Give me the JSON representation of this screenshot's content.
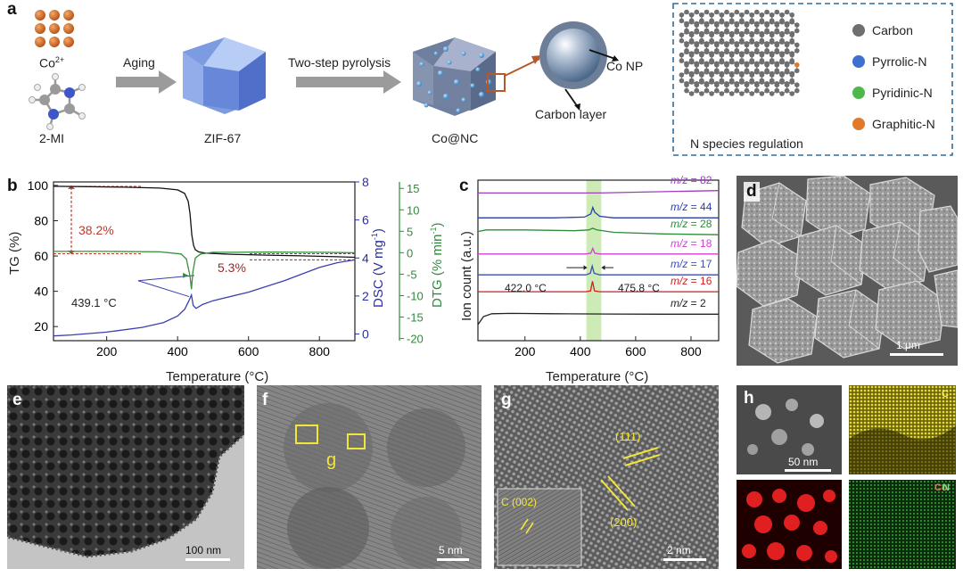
{
  "panel_a": {
    "label": "a",
    "co_ion": "Co",
    "co_ion_sup": "2+",
    "ligand": "2-MI",
    "step1": "Aging",
    "step2": "Two-step pyrolysis",
    "zif": "ZIF-67",
    "product": "Co@NC",
    "co_np": "Co NP",
    "carbon_layer": "Carbon layer",
    "regulation_caption": "N species regulation",
    "legend": [
      {
        "name": "Carbon",
        "color": "#6f6f6f"
      },
      {
        "name": "Pyrrolic-N",
        "color": "#3f6fd0"
      },
      {
        "name": "Pyridinic-N",
        "color": "#4fb84a"
      },
      {
        "name": "Graphitic-N",
        "color": "#e07a2a"
      }
    ]
  },
  "panel_b": {
    "label": "b",
    "left_axis_label": "TG (%)",
    "mid_axis_label": "DSC (V mg",
    "mid_axis_sup": "-1",
    "right_axis_label": "DTG (% min",
    "right_axis_sup": "-1",
    "x_axis_label": "Temperature (°C)",
    "ann_loss1": "38.2%",
    "ann_loss2": "5.3%",
    "ann_peak": "439.1 °C"
  },
  "panel_c": {
    "label": "c",
    "y_axis_label": "Ion count (a.u.)",
    "x_axis_label": "Temperature (°C)",
    "ann_left": "422.0 °C",
    "ann_right": "475.8 °C",
    "mz_prefix": "m/z",
    "traces": [
      {
        "mz": "82",
        "color": "#9b3fbf"
      },
      {
        "mz": "44",
        "color": "#2a3fa8"
      },
      {
        "mz": "28",
        "color": "#2e8b3a"
      },
      {
        "mz": "18",
        "color": "#d23fd2"
      },
      {
        "mz": "17",
        "color": "#3a4fb0"
      },
      {
        "mz": "16",
        "color": "#d21f1f"
      },
      {
        "mz": "2",
        "color": "#222222"
      }
    ]
  },
  "panel_d": {
    "label": "d",
    "scale": "1 μm"
  },
  "panel_e": {
    "label": "e",
    "scale": "100 nm"
  },
  "panel_f": {
    "label": "f",
    "scale": "5 nm",
    "region": "g"
  },
  "panel_g": {
    "label": "g",
    "scale": "2 nm",
    "plane1": "(111)",
    "plane2": "(200)",
    "plane3": "C (002)"
  },
  "panel_h": {
    "label": "h",
    "scale": "50 nm",
    "map_c": "C",
    "map_co": "Co",
    "map_n": "N"
  },
  "chart_data": [
    {
      "type": "line",
      "panel": "b",
      "xlabel": "Temperature (°C)",
      "xlim": [
        50,
        900
      ],
      "x_ticks": [
        200,
        400,
        600,
        800
      ],
      "y_axes": [
        {
          "name": "TG (%)",
          "range": [
            12,
            102
          ],
          "ticks": [
            20,
            40,
            60,
            80,
            100
          ]
        },
        {
          "name": "DSC (V mg-1)",
          "range": [
            -0.35,
            8
          ],
          "ticks": [
            0,
            2,
            4,
            6,
            8
          ]
        },
        {
          "name": "DTG (% min-1)",
          "range": [
            -20.5,
            16.5
          ],
          "ticks": [
            -20,
            -15,
            -10,
            -5,
            0,
            5,
            10,
            15
          ]
        }
      ],
      "series": [
        {
          "name": "TG",
          "color": "#111111",
          "axis": 0,
          "x": [
            50,
            150,
            250,
            350,
            400,
            420,
            430,
            435,
            440,
            445,
            450,
            460,
            480,
            550,
            650,
            750,
            850,
            900
          ],
          "y": [
            99.5,
            99.3,
            99,
            98.5,
            97.5,
            95.5,
            91,
            84,
            72,
            66,
            63.5,
            62.3,
            61.6,
            61,
            60.5,
            60.1,
            59.6,
            59.3
          ]
        },
        {
          "name": "DSC",
          "color": "#3a3fb0",
          "axis": 1,
          "x": [
            50,
            100,
            200,
            300,
            360,
            400,
            420,
            432,
            439,
            444,
            452,
            470,
            500,
            600,
            700,
            800,
            850,
            900
          ],
          "y": [
            -0.1,
            -0.05,
            0.1,
            0.35,
            0.6,
            0.95,
            1.3,
            1.75,
            2.05,
            1.5,
            1.35,
            1.55,
            1.75,
            2.2,
            2.8,
            3.5,
            3.75,
            3.9
          ]
        },
        {
          "name": "DTG",
          "color": "#3a8f3a",
          "axis": 2,
          "x": [
            50,
            200,
            350,
            410,
            425,
            435,
            439,
            443,
            450,
            465,
            500,
            650,
            800,
            900
          ],
          "y": [
            0.3,
            0.3,
            0.2,
            -0.3,
            -1.5,
            -5.5,
            -8.5,
            -4.5,
            -1.2,
            -0.3,
            0.1,
            0.15,
            0.1,
            0.0
          ]
        }
      ],
      "annotations": [
        "38.2%",
        "5.3%",
        "439.1 °C"
      ]
    },
    {
      "type": "line",
      "panel": "c",
      "xlabel": "Temperature (°C)",
      "ylabel": "Ion count (a.u.)",
      "xlim": [
        30,
        900
      ],
      "x_ticks": [
        200,
        400,
        600,
        800
      ],
      "highlight_band": [
        422.0,
        475.8
      ],
      "series": [
        {
          "name": "m/z = 82",
          "x": [
            30,
            300,
            420,
            445,
            470,
            600,
            900
          ],
          "y": [
            0.92,
            0.92,
            0.92,
            0.92,
            0.92,
            0.925,
            0.935
          ]
        },
        {
          "name": "m/z = 44",
          "x": [
            30,
            300,
            415,
            438,
            445,
            452,
            470,
            520,
            700,
            900
          ],
          "y": [
            0.765,
            0.765,
            0.77,
            0.79,
            0.83,
            0.8,
            0.775,
            0.765,
            0.765,
            0.765
          ]
        },
        {
          "name": "m/z = 28",
          "x": [
            30,
            60,
            200,
            380,
            430,
            445,
            460,
            520,
            700,
            900
          ],
          "y": [
            0.68,
            0.69,
            0.69,
            0.685,
            0.69,
            0.7,
            0.69,
            0.675,
            0.665,
            0.66
          ]
        },
        {
          "name": "m/z = 18",
          "x": [
            30,
            300,
            420,
            438,
            445,
            452,
            470,
            700,
            900
          ],
          "y": [
            0.54,
            0.54,
            0.54,
            0.545,
            0.575,
            0.545,
            0.54,
            0.54,
            0.54
          ]
        },
        {
          "name": "m/z = 17",
          "x": [
            30,
            300,
            420,
            436,
            443,
            450,
            470,
            700,
            900
          ],
          "y": [
            0.41,
            0.41,
            0.41,
            0.42,
            0.465,
            0.42,
            0.41,
            0.41,
            0.41
          ]
        },
        {
          "name": "m/z = 16",
          "x": [
            30,
            300,
            420,
            437,
            444,
            451,
            470,
            700,
            900
          ],
          "y": [
            0.305,
            0.305,
            0.305,
            0.31,
            0.37,
            0.31,
            0.305,
            0.305,
            0.305
          ]
        },
        {
          "name": "m/z = 2",
          "x": [
            30,
            50,
            80,
            150,
            300,
            500,
            700,
            900
          ],
          "y": [
            0.1,
            0.15,
            0.168,
            0.17,
            0.168,
            0.166,
            0.165,
            0.165
          ]
        }
      ],
      "annotations": [
        "422.0 °C",
        "475.8 °C"
      ]
    }
  ]
}
